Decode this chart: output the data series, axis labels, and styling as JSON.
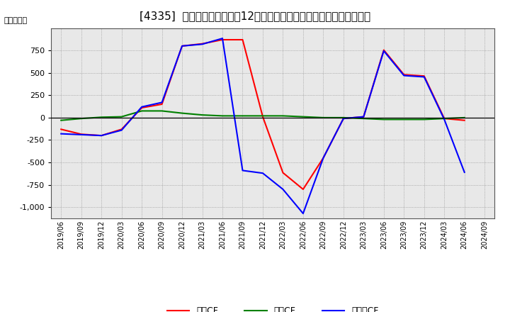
{
  "title": "[4335]  キャッシュフローの12か月移動合計の対前年同期増減額の推移",
  "ylabel": "（百万円）",
  "x_labels": [
    "2019/06",
    "2019/09",
    "2019/12",
    "2020/03",
    "2020/06",
    "2020/09",
    "2020/12",
    "2021/03",
    "2021/06",
    "2021/09",
    "2021/12",
    "2022/03",
    "2022/06",
    "2022/09",
    "2022/12",
    "2023/03",
    "2023/06",
    "2023/09",
    "2023/12",
    "2024/03",
    "2024/06",
    "2024/09"
  ],
  "operating_cf": [
    -130,
    -185,
    -200,
    -130,
    110,
    150,
    800,
    825,
    870,
    870,
    10,
    -615,
    -800,
    -450,
    -10,
    10,
    755,
    480,
    465,
    -10,
    -30,
    null
  ],
  "investing_cf": [
    -30,
    -10,
    5,
    10,
    75,
    75,
    50,
    30,
    20,
    20,
    20,
    20,
    10,
    0,
    0,
    -10,
    -20,
    -20,
    -20,
    -10,
    0,
    null
  ],
  "free_cf": [
    -180,
    -190,
    -200,
    -140,
    120,
    170,
    800,
    820,
    885,
    -590,
    -620,
    -800,
    -1070,
    -450,
    -10,
    10,
    745,
    470,
    455,
    -20,
    -610,
    null
  ],
  "operating_color": "#ff0000",
  "investing_color": "#008000",
  "free_color": "#0000ff",
  "bg_color": "#ffffff",
  "plot_bg_color": "#e8e8e8",
  "ylim": [
    -1125,
    1000
  ],
  "yticks": [
    -1000,
    -750,
    -500,
    -250,
    0,
    250,
    500,
    750
  ],
  "title_fontsize": 11,
  "axis_fontsize": 8,
  "legend_labels": [
    "営業CF",
    "投資CF",
    "フリーCF"
  ]
}
